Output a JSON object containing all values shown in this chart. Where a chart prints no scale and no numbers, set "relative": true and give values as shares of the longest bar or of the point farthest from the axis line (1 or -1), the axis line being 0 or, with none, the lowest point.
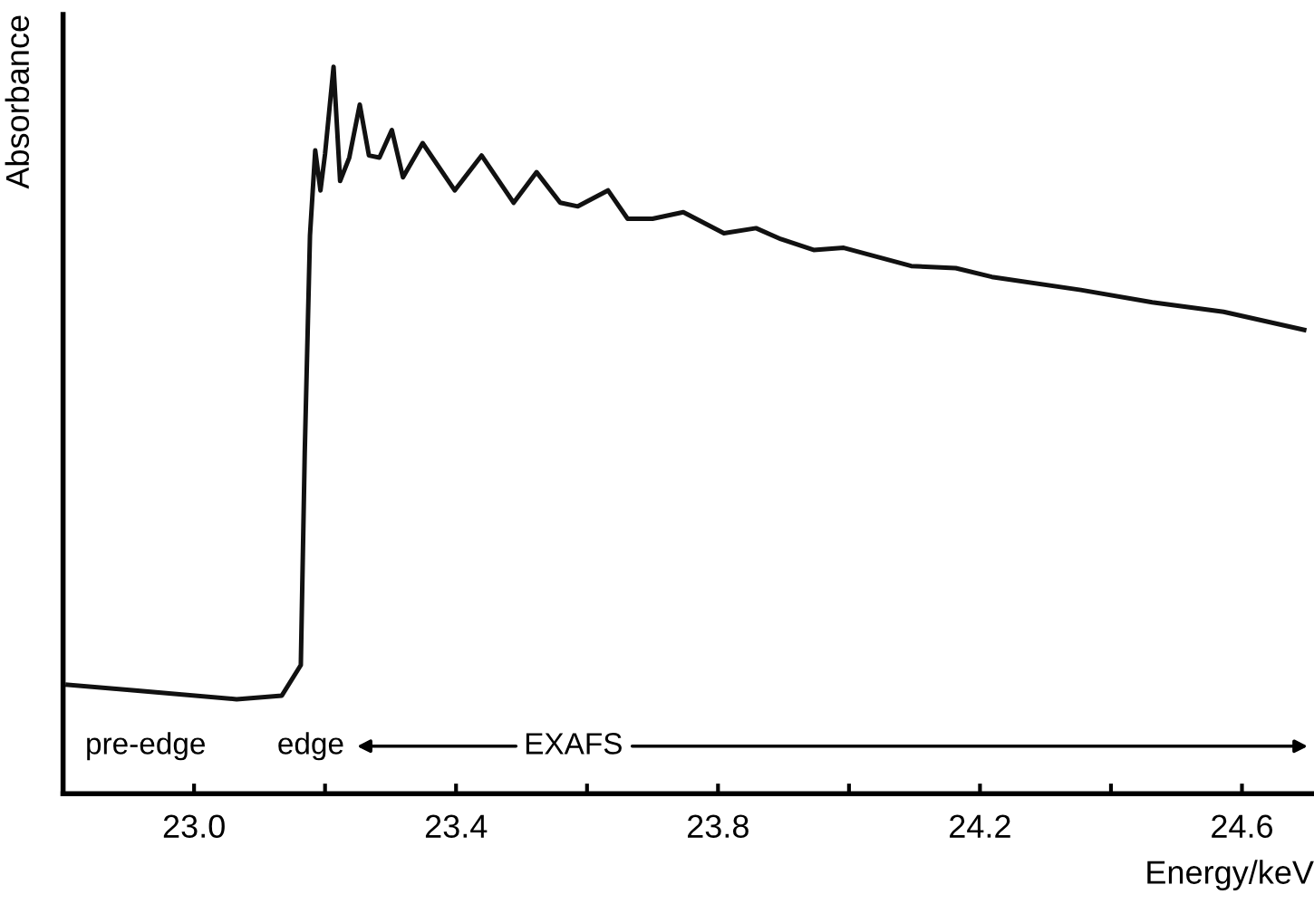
{
  "chart_data": {
    "type": "line",
    "relative": true,
    "xlabel": "Energy/keV",
    "ylabel": "Absorbance",
    "annotations": [
      "pre-edge",
      "edge",
      "EXAFS"
    ],
    "xlim": [
      22.8,
      24.71
    ],
    "xticks": [
      {
        "value": 23.0,
        "label": "23.0"
      },
      {
        "value": 23.2,
        "label": null
      },
      23.4,
      {
        "value": 23.6,
        "label": null
      },
      23.8,
      {
        "value": 24.0,
        "label": null
      },
      24.2,
      {
        "value": 24.4,
        "label": null
      },
      24.6
    ],
    "grid": false,
    "legend": false,
    "marker": "none",
    "line_style": "solid",
    "series": [
      {
        "color": "#111111",
        "x": [
          22.807,
          22.91,
          23.065,
          23.134,
          23.163,
          23.169,
          23.177,
          23.185,
          23.193,
          23.2,
          23.213,
          23.223,
          23.237,
          23.253,
          23.267,
          23.283,
          23.302,
          23.319,
          23.349,
          23.398,
          23.439,
          23.488,
          23.523,
          23.559,
          23.586,
          23.632,
          23.662,
          23.7,
          23.747,
          23.809,
          23.858,
          23.896,
          23.946,
          23.992,
          24.095,
          24.163,
          24.218,
          24.354,
          24.463,
          24.572,
          24.695
        ],
        "values": [
          0.15,
          0.142,
          0.13,
          0.135,
          0.177,
          0.469,
          0.768,
          0.885,
          0.83,
          0.88,
          1.0,
          0.843,
          0.875,
          0.948,
          0.878,
          0.875,
          0.913,
          0.848,
          0.895,
          0.83,
          0.878,
          0.813,
          0.855,
          0.813,
          0.808,
          0.83,
          0.791,
          0.791,
          0.8,
          0.771,
          0.778,
          0.763,
          0.748,
          0.751,
          0.726,
          0.723,
          0.711,
          0.693,
          0.676,
          0.663,
          0.638
        ]
      }
    ]
  }
}
